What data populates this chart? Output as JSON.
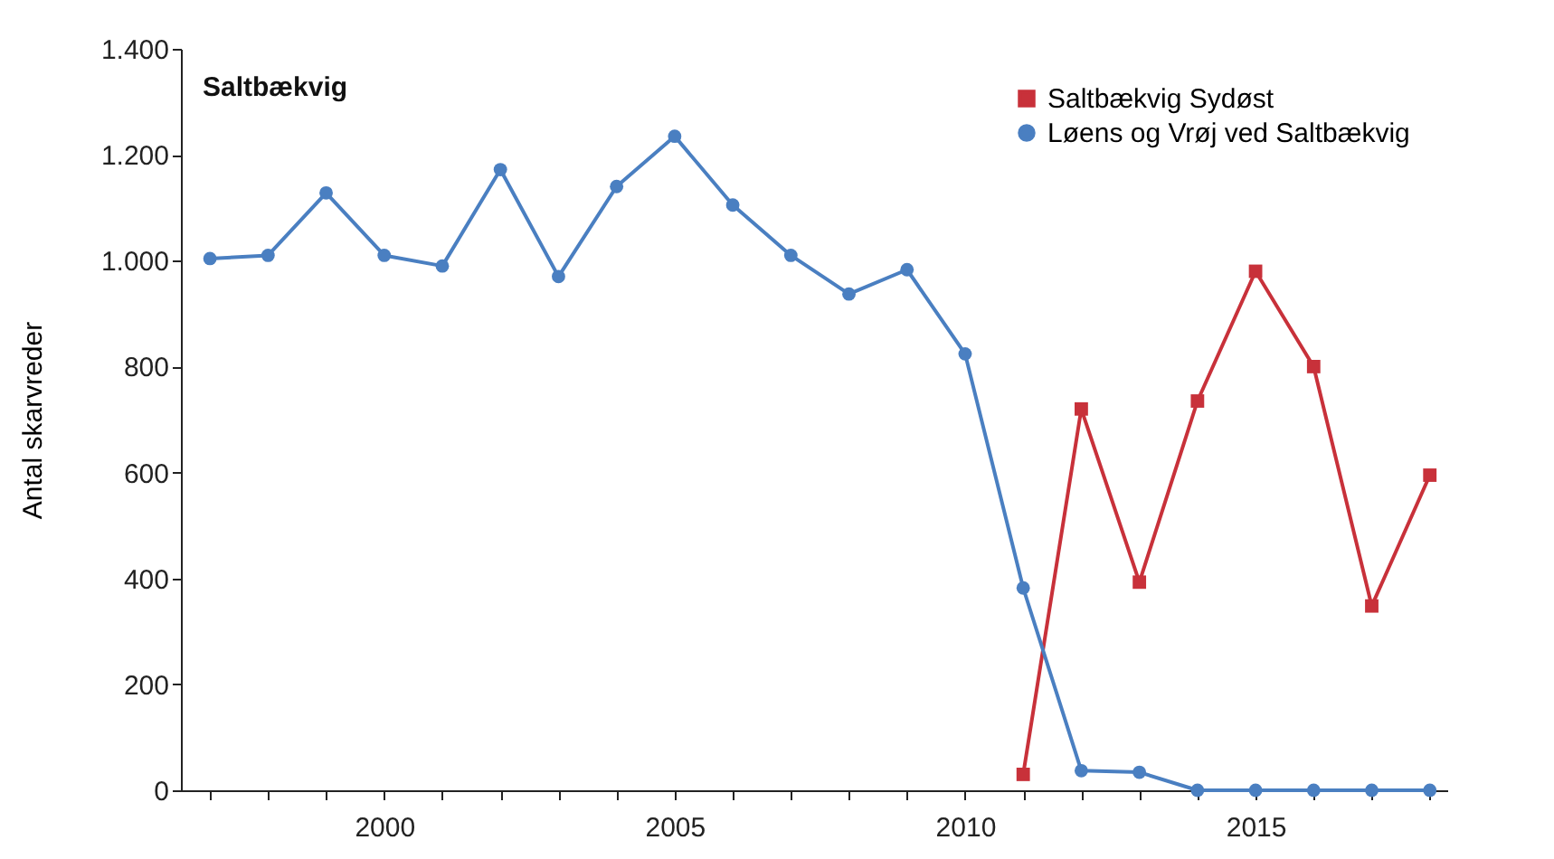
{
  "chart_data": {
    "type": "line",
    "title": "Saltbækvig",
    "ylabel": "Antal skarvreder",
    "x": [
      1997,
      1998,
      1999,
      2000,
      2001,
      2002,
      2003,
      2004,
      2005,
      2006,
      2007,
      2008,
      2009,
      2010,
      2011,
      2012,
      2013,
      2014,
      2015,
      2016,
      2017,
      2018
    ],
    "series": [
      {
        "name": "Saltbækvig Sydøst",
        "color": "#c8313a",
        "marker": "square",
        "values": [
          null,
          null,
          null,
          null,
          null,
          null,
          null,
          null,
          null,
          null,
          null,
          null,
          null,
          null,
          30,
          720,
          393,
          735,
          980,
          800,
          348,
          595
        ]
      },
      {
        "name": "Løens og Vrøj ved Saltbækvig",
        "color": "#4a7fc1",
        "marker": "circle",
        "values": [
          1004,
          1010,
          1128,
          1010,
          990,
          1172,
          970,
          1140,
          1235,
          1105,
          1010,
          937,
          983,
          824,
          382,
          37,
          34,
          0,
          0,
          0,
          0,
          0
        ]
      }
    ],
    "xlim": [
      1996.5,
      2018.3
    ],
    "xticks": [
      {
        "value": 1997,
        "label": null
      },
      {
        "value": 1998,
        "label": null
      },
      {
        "value": 1999,
        "label": null
      },
      2000,
      {
        "value": 2001,
        "label": null
      },
      {
        "value": 2002,
        "label": null
      },
      {
        "value": 2003,
        "label": null
      },
      {
        "value": 2004,
        "label": null
      },
      2005,
      {
        "value": 2006,
        "label": null
      },
      {
        "value": 2007,
        "label": null
      },
      {
        "value": 2008,
        "label": null
      },
      {
        "value": 2009,
        "label": null
      },
      2010,
      {
        "value": 2011,
        "label": null
      },
      {
        "value": 2012,
        "label": null
      },
      {
        "value": 2013,
        "label": null
      },
      {
        "value": 2014,
        "label": null
      },
      2015,
      {
        "value": 2016,
        "label": null
      },
      {
        "value": 2017,
        "label": null
      },
      {
        "value": 2018,
        "label": null
      }
    ],
    "ylim": [
      0,
      1400
    ],
    "yticks": [
      0,
      200,
      400,
      600,
      800,
      {
        "value": 1000,
        "label": "1.000"
      },
      {
        "value": 1200,
        "label": "1.200"
      },
      {
        "value": 1400,
        "label": "1.400"
      }
    ],
    "grid": false,
    "legend": "top right",
    "line_style": "solid"
  }
}
